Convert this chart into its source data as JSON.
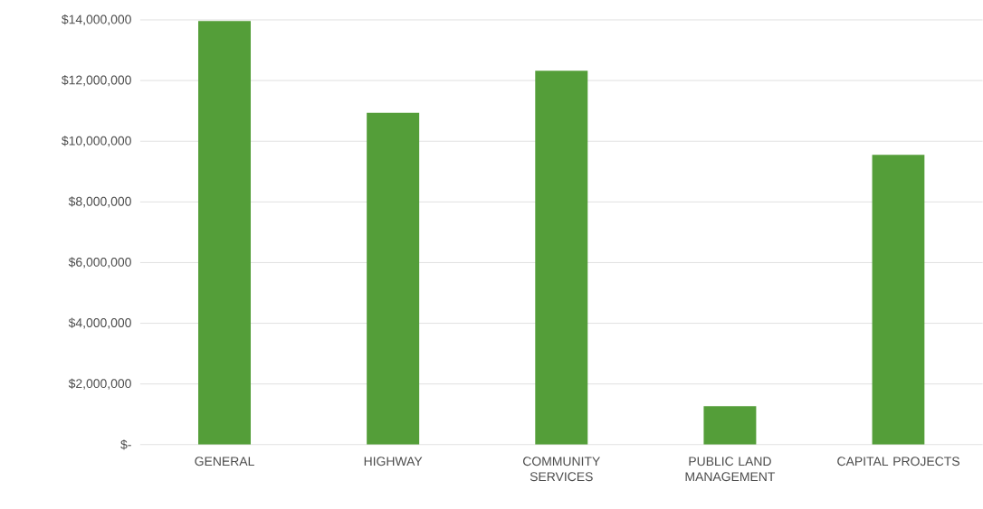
{
  "chart_data": {
    "type": "bar",
    "categories": [
      "GENERAL",
      "HIGHWAY",
      "COMMUNITY SERVICES",
      "PUBLIC LAND MANAGEMENT",
      "CAPITAL PROJECTS"
    ],
    "values": [
      13960000,
      10940000,
      12320000,
      1270000,
      9550000
    ],
    "color": "#549e39",
    "ylim": [
      0,
      14000000
    ],
    "yticks": [
      {
        "value": 0,
        "label": "$-"
      },
      {
        "value": 2000000,
        "label": "$2,000,000"
      },
      {
        "value": 4000000,
        "label": "$4,000,000"
      },
      {
        "value": 6000000,
        "label": "$6,000,000"
      },
      {
        "value": 8000000,
        "label": "$8,000,000"
      },
      {
        "value": 10000000,
        "label": "$10,000,000"
      },
      {
        "value": 12000000,
        "label": "$12,000,000"
      },
      {
        "value": 14000000,
        "label": "$14,000,000"
      }
    ],
    "grid": "y"
  }
}
